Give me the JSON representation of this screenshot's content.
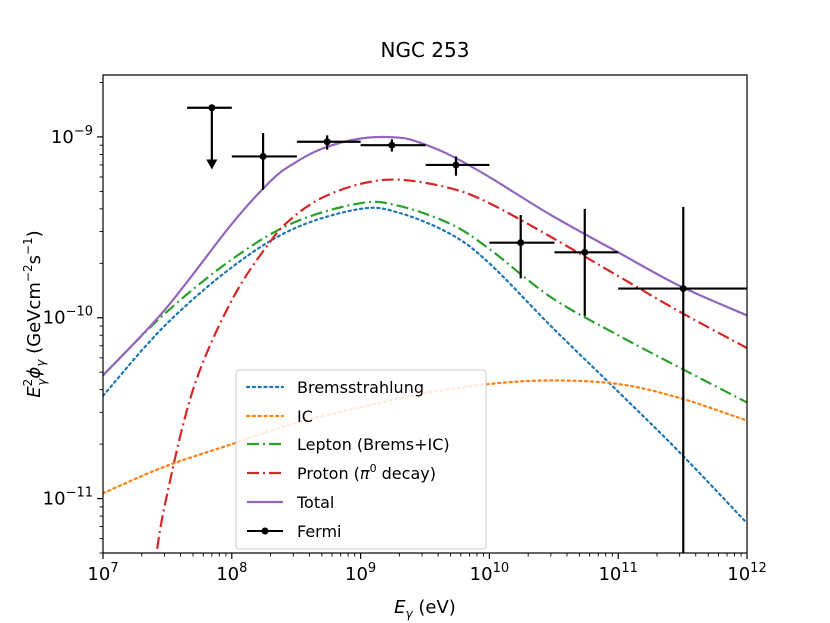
{
  "chart_data": {
    "type": "line",
    "title": "NGC 253",
    "xlabel": {
      "main": "E",
      "sub": "γ",
      "suffix": " (eV)"
    },
    "ylabel": {
      "main": "E",
      "sup": "2",
      "sub": "γ",
      "phi": "ϕ",
      "phisub": "γ",
      "unit_open": " (GeVcm",
      "unit_exp1": "−2",
      "unit_mid": "s",
      "unit_exp2": "−1",
      "unit_close": ")"
    },
    "xscale": "log",
    "yscale": "log",
    "xlim": [
      10000000.0,
      1000000000000.0
    ],
    "ylim": [
      5e-12,
      2.2e-09
    ],
    "x_ticks": [
      {
        "value": 10000000.0,
        "base": "10",
        "exp": "7"
      },
      {
        "value": 100000000.0,
        "base": "10",
        "exp": "8"
      },
      {
        "value": 1000000000.0,
        "base": "10",
        "exp": "9"
      },
      {
        "value": 10000000000.0,
        "base": "10",
        "exp": "10"
      },
      {
        "value": 100000000000.0,
        "base": "10",
        "exp": "11"
      },
      {
        "value": 1000000000000.0,
        "base": "10",
        "exp": "12"
      }
    ],
    "y_ticks": [
      {
        "value": 1e-11,
        "base": "10",
        "exp": "−11"
      },
      {
        "value": 1e-10,
        "base": "10",
        "exp": "−10"
      },
      {
        "value": 1e-09,
        "base": "10",
        "exp": "−9"
      }
    ],
    "legend_position": "lower-center",
    "series": [
      {
        "name": "Bremsstrahlung",
        "style": "dotted",
        "color": "#1f77b4",
        "x": [
          10000000.0,
          30000000.0,
          100000000.0,
          300000000.0,
          1000000000.0,
          2000000000.0,
          5000000000.0,
          10000000000.0,
          30000000000.0,
          100000000000.0,
          300000000000.0,
          1000000000000.0
        ],
        "y": [
          3.7e-11,
          9e-11,
          1.9e-10,
          3.1e-10,
          4e-10,
          3.8e-10,
          2.9e-10,
          2e-10,
          9e-11,
          3.9e-11,
          1.8e-11,
          7.3e-12
        ]
      },
      {
        "name": "IC",
        "style": "dotted",
        "color": "#ff7f0e",
        "x": [
          10000000.0,
          30000000.0,
          100000000.0,
          300000000.0,
          1000000000.0,
          3000000000.0,
          10000000000.0,
          30000000000.0,
          100000000000.0,
          300000000000.0,
          1000000000000.0
        ],
        "y": [
          1.07e-11,
          1.5e-11,
          2e-11,
          2.6e-11,
          3.2e-11,
          3.8e-11,
          4.3e-11,
          4.5e-11,
          4.3e-11,
          3.6e-11,
          2.7e-11
        ]
      },
      {
        "name": "Lepton (Brems+IC)",
        "style": "dashdot",
        "color": "#2ca02c",
        "x": [
          10000000.0,
          30000000.0,
          100000000.0,
          300000000.0,
          1000000000.0,
          2000000000.0,
          5000000000.0,
          10000000000.0,
          30000000000.0,
          100000000000.0,
          300000000000.0,
          1000000000000.0
        ],
        "y": [
          4.8e-11,
          1.05e-10,
          2.1e-10,
          3.35e-10,
          4.3e-10,
          4.15e-10,
          3.3e-10,
          2.4e-10,
          1.3e-10,
          8e-11,
          5.3e-11,
          3.4e-11
        ]
      },
      {
        "name": "Proton (π0 decay)",
        "legend_label": {
          "pre": "Proton (",
          "sym": "π",
          "sup": "0",
          "post": " decay)"
        },
        "style": "dashdot",
        "color": "#d62728",
        "x": [
          25000000.0,
          30000000.0,
          50000000.0,
          100000000.0,
          200000000.0,
          300000000.0,
          500000000.0,
          1000000000.0,
          2000000000.0,
          5000000000.0,
          10000000000.0,
          30000000000.0,
          100000000000.0,
          300000000000.0,
          1000000000000.0
        ],
        "y": [
          4e-12,
          9e-12,
          4e-11,
          1.25e-10,
          2.65e-10,
          3.6e-10,
          4.6e-10,
          5.5e-10,
          5.8e-10,
          5.2e-10,
          4.3e-10,
          2.8e-10,
          1.7e-10,
          1.08e-10,
          6.8e-11
        ]
      },
      {
        "name": "Total",
        "style": "solid",
        "color": "#9467bd",
        "x": [
          10000000.0,
          30000000.0,
          100000000.0,
          200000000.0,
          300000000.0,
          500000000.0,
          1000000000.0,
          2000000000.0,
          3000000000.0,
          5000000000.0,
          10000000000.0,
          30000000000.0,
          100000000000.0,
          300000000000.0,
          1000000000000.0
        ],
        "y": [
          4.8e-11,
          1.1e-10,
          3.3e-10,
          5.7e-10,
          7.1e-10,
          8.6e-10,
          9.8e-10,
          9.9e-10,
          9.2e-10,
          7.9e-10,
          6e-10,
          3.7e-10,
          2.3e-10,
          1.5e-10,
          1.03e-10
        ]
      }
    ],
    "fermi": {
      "name": "Fermi",
      "color": "#000000",
      "points": [
        {
          "x": 70000000.0,
          "y": 1.45e-09,
          "xlo": 45000000.0,
          "xhi": 100000000.0,
          "ylo": null,
          "yhi": null,
          "upper_limit": true,
          "arrow_to": 6.6e-10
        },
        {
          "x": 175000000.0,
          "y": 7.8e-10,
          "xlo": 100000000.0,
          "xhi": 320000000.0,
          "ylo": 5.1e-10,
          "yhi": 1.05e-09,
          "upper_limit": false
        },
        {
          "x": 550000000.0,
          "y": 9.4e-10,
          "xlo": 320000000.0,
          "xhi": 1000000000.0,
          "ylo": 8.5e-10,
          "yhi": 1.02e-09,
          "upper_limit": false
        },
        {
          "x": 1750000000.0,
          "y": 9e-10,
          "xlo": 1000000000.0,
          "xhi": 3200000000.0,
          "ylo": 8.3e-10,
          "yhi": 9.7e-10,
          "upper_limit": false
        },
        {
          "x": 5500000000.0,
          "y": 7e-10,
          "xlo": 3200000000.0,
          "xhi": 10000000000.0,
          "ylo": 6.1e-10,
          "yhi": 7.8e-10,
          "upper_limit": false
        },
        {
          "x": 17500000000.0,
          "y": 2.6e-10,
          "xlo": 10000000000.0,
          "xhi": 32000000000.0,
          "ylo": 1.65e-10,
          "yhi": 3.7e-10,
          "upper_limit": false
        },
        {
          "x": 55000000000.0,
          "y": 2.3e-10,
          "xlo": 32000000000.0,
          "xhi": 100000000000.0,
          "ylo": 1.02e-10,
          "yhi": 4e-10,
          "upper_limit": false
        },
        {
          "x": 320000000000.0,
          "y": 1.45e-10,
          "xlo": 100000000000.0,
          "xhi": 1000000000000.0,
          "ylo": 4e-12,
          "yhi": 4.1e-10,
          "upper_limit": false
        }
      ]
    }
  }
}
